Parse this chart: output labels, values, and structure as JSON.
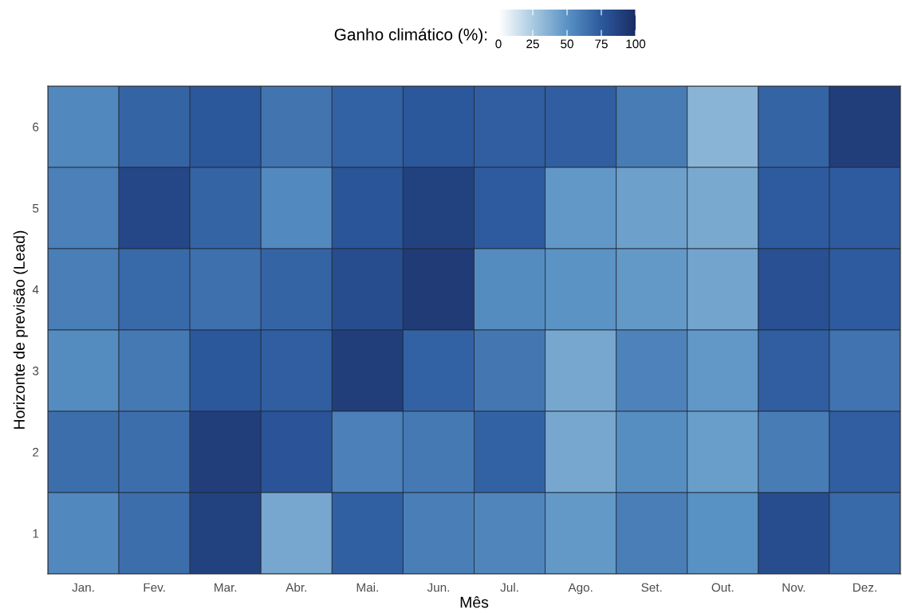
{
  "chart_data": {
    "type": "heatmap",
    "xlabel": "Mês",
    "ylabel": "Horizonte de previsão (Lead)",
    "clabel": "Ganho climático (%):",
    "categories": [
      "Jan.",
      "Fev.",
      "Mar.",
      "Abr.",
      "Mai.",
      "Jun.",
      "Jul.",
      "Ago.",
      "Set.",
      "Out.",
      "Nov.",
      "Dez."
    ],
    "y_categories": [
      "6",
      "5",
      "4",
      "3",
      "2",
      "1"
    ],
    "cells": [
      [
        55,
        70,
        76,
        63,
        71,
        76,
        73,
        73,
        60,
        35,
        70,
        90
      ],
      [
        58,
        85,
        70,
        54,
        77,
        88,
        74,
        48,
        44,
        40,
        74,
        74
      ],
      [
        59,
        68,
        65,
        70,
        82,
        92,
        53,
        50,
        47,
        42,
        80,
        74
      ],
      [
        53,
        61,
        76,
        73,
        90,
        71,
        62,
        41,
        57,
        48,
        73,
        64
      ],
      [
        66,
        66,
        90,
        78,
        58,
        61,
        71,
        41,
        52,
        45,
        60,
        73
      ],
      [
        55,
        66,
        88,
        41,
        72,
        59,
        56,
        47,
        59,
        51,
        82,
        68
      ]
    ],
    "clim": [
      0,
      100
    ],
    "cticks": [
      0,
      25,
      50,
      75,
      100
    ],
    "grid": false
  }
}
